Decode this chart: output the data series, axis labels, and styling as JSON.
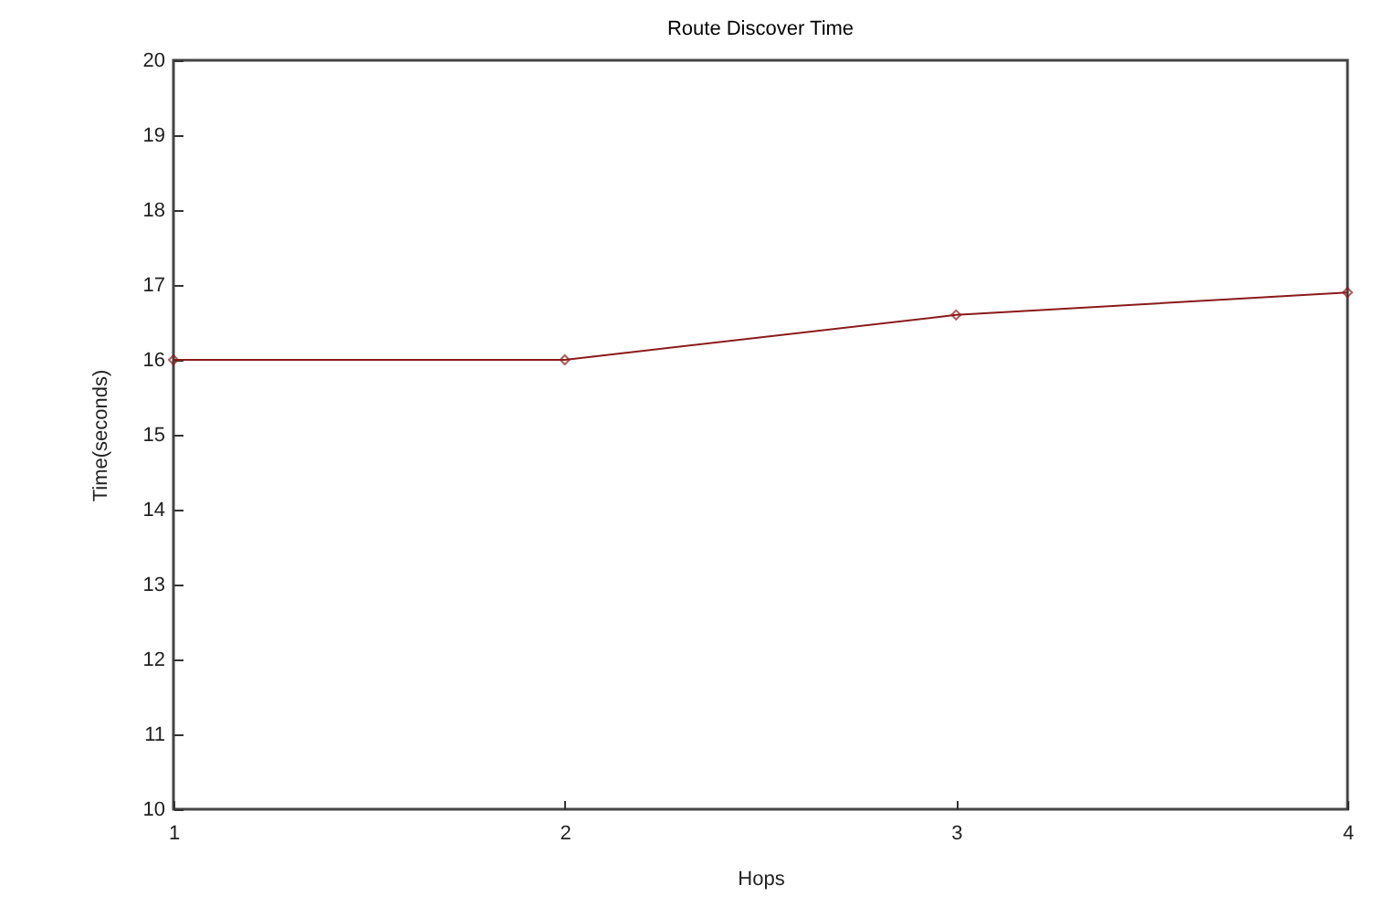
{
  "chart_data": {
    "type": "line",
    "title": "Route Discover Time",
    "xlabel": "Hops",
    "ylabel": "Time(seconds)",
    "x": [
      1,
      2,
      3,
      4
    ],
    "series": [
      {
        "color": "#8b1a1a",
        "values": [
          16,
          16,
          16.6,
          16.9
        ]
      }
    ],
    "xlim": [
      1,
      4
    ],
    "xticks": [
      1,
      2,
      3,
      4
    ],
    "ylim": [
      10,
      20
    ],
    "yticks": [
      10,
      11,
      12,
      13,
      14,
      15,
      16,
      17,
      18,
      19,
      20
    ],
    "grid": false,
    "legend": false,
    "marker": "diamond",
    "line_style": "solid"
  }
}
